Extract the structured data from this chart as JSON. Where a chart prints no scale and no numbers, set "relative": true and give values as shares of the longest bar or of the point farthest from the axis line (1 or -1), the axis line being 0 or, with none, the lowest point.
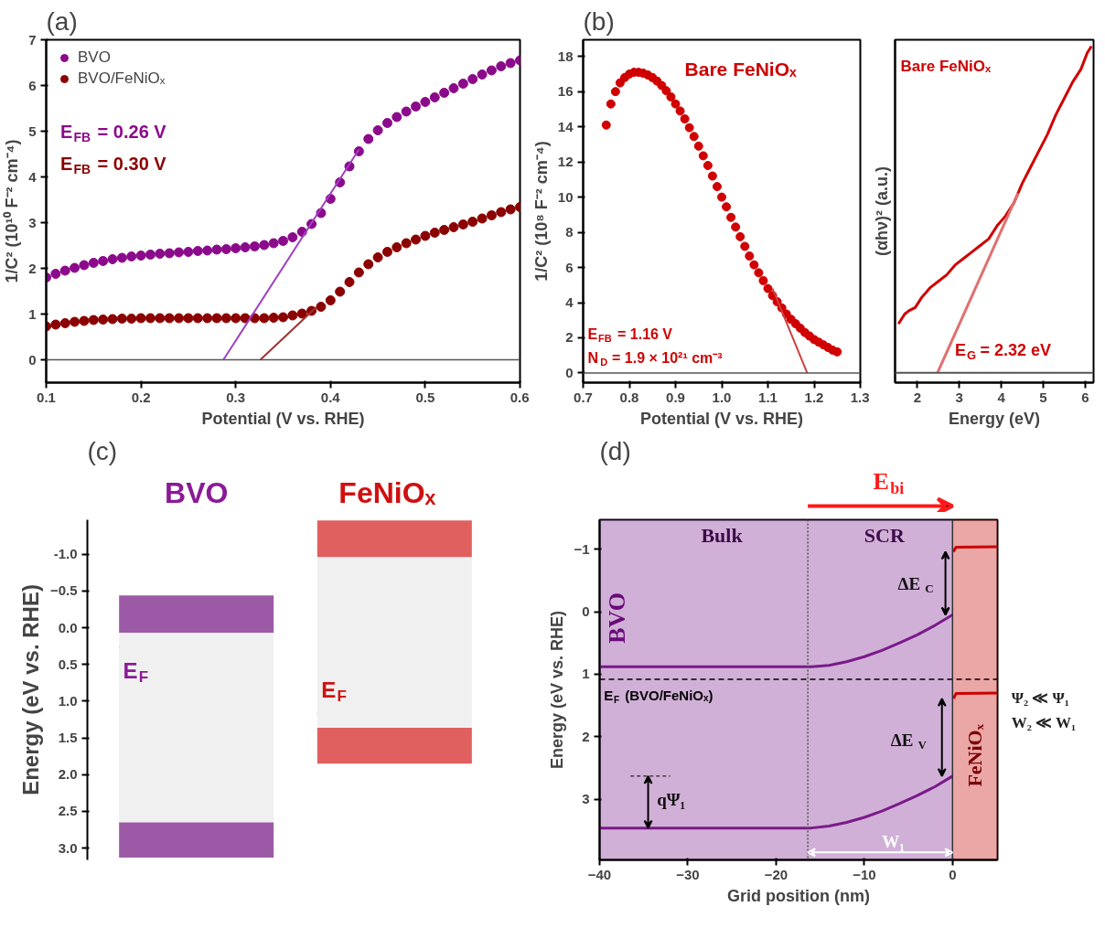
{
  "chart_data": [
    {
      "type": "scatter",
      "title": "(a)",
      "xlabel": "Potential (V vs. RHE)",
      "ylabel": "1/C² (10¹⁰ F⁻² cm⁻⁴)",
      "xlim": [
        0.1,
        0.6
      ],
      "ylim": [
        -0.5,
        7
      ],
      "xticks": [
        0.1,
        0.2,
        0.3,
        0.4,
        0.5,
        0.6
      ],
      "yticks": [
        0,
        1,
        2,
        3,
        4,
        5,
        6,
        7
      ],
      "legend": "top left",
      "grid": false,
      "x": [
        0.1,
        0.11,
        0.12,
        0.13,
        0.14,
        0.15,
        0.16,
        0.17,
        0.18,
        0.19,
        0.2,
        0.21,
        0.22,
        0.23,
        0.24,
        0.25,
        0.26,
        0.27,
        0.28,
        0.29,
        0.3,
        0.31,
        0.32,
        0.33,
        0.34,
        0.35,
        0.36,
        0.37,
        0.38,
        0.39,
        0.4,
        0.41,
        0.42,
        0.43,
        0.44,
        0.45,
        0.46,
        0.47,
        0.48,
        0.49,
        0.5,
        0.51,
        0.52,
        0.53,
        0.54,
        0.55,
        0.56,
        0.57,
        0.58,
        0.59,
        0.6
      ],
      "series": [
        {
          "name": "BVO",
          "color": "#8b0a8b",
          "marker": "circle",
          "values": [
            1.8,
            1.88,
            1.95,
            2.01,
            2.07,
            2.12,
            2.16,
            2.2,
            2.23,
            2.26,
            2.28,
            2.3,
            2.32,
            2.33,
            2.35,
            2.36,
            2.38,
            2.39,
            2.41,
            2.42,
            2.44,
            2.46,
            2.48,
            2.51,
            2.55,
            2.6,
            2.68,
            2.8,
            2.97,
            3.21,
            3.52,
            3.88,
            4.23,
            4.56,
            4.83,
            5.02,
            5.18,
            5.31,
            5.43,
            5.54,
            5.64,
            5.74,
            5.84,
            5.94,
            6.04,
            6.14,
            6.24,
            6.33,
            6.42,
            6.49,
            6.55
          ]
        },
        {
          "name": "BVO/FeNiOₓ",
          "color": "#8b0000",
          "marker": "circle",
          "values": [
            0.73,
            0.77,
            0.8,
            0.83,
            0.85,
            0.87,
            0.88,
            0.89,
            0.9,
            0.9,
            0.91,
            0.91,
            0.91,
            0.91,
            0.91,
            0.91,
            0.91,
            0.91,
            0.91,
            0.91,
            0.91,
            0.91,
            0.91,
            0.91,
            0.92,
            0.93,
            0.97,
            1.01,
            1.07,
            1.16,
            1.3,
            1.49,
            1.7,
            1.91,
            2.09,
            2.24,
            2.36,
            2.46,
            2.55,
            2.63,
            2.71,
            2.78,
            2.84,
            2.9,
            2.96,
            3.02,
            3.09,
            3.16,
            3.23,
            3.29,
            3.34
          ]
        },
        {
          "type": "line",
          "color": "#a040c0",
          "x": [
            0.287,
            0.43
          ],
          "values": [
            0,
            4.6
          ]
        },
        {
          "type": "line",
          "color": "#a03030",
          "x": [
            0.326,
            0.385
          ],
          "values": [
            0,
            1.15
          ]
        }
      ],
      "ref_lines": [
        {
          "axis": "y",
          "value": 0,
          "color": "#555555"
        }
      ],
      "annotations": [
        "E$_{FB}$ = 0.26 V",
        "E$_{FB}$ = 0.30 V"
      ]
    },
    {
      "type": "scatter",
      "title": "(b)",
      "xlabel": "Potential (V vs. RHE)",
      "ylabel": "1/C² (10⁸ F⁻² cm⁻⁴)",
      "xlim": [
        0.7,
        1.3
      ],
      "ylim": [
        -0.55,
        18.95
      ],
      "xticks": [
        0.7,
        0.8,
        0.9,
        {
          "value": 1.0,
          "label": "1.0"
        },
        1.1,
        1.2,
        1.3
      ],
      "yticks": [
        0,
        2,
        4,
        6,
        8,
        10,
        12,
        14,
        16,
        18
      ],
      "grid": false,
      "x": [
        0.75,
        0.76,
        0.77,
        0.78,
        0.79,
        0.8,
        0.81,
        0.82,
        0.83,
        0.84,
        0.85,
        0.86,
        0.87,
        0.88,
        0.89,
        0.9,
        0.91,
        0.92,
        0.93,
        0.94,
        0.95,
        0.96,
        0.97,
        0.98,
        0.99,
        1.0,
        1.01,
        1.02,
        1.03,
        1.04,
        1.05,
        1.06,
        1.07,
        1.08,
        1.09,
        1.1,
        1.11,
        1.12,
        1.13,
        1.14,
        1.15,
        1.16,
        1.17,
        1.18,
        1.19,
        1.2,
        1.21,
        1.22,
        1.23,
        1.24,
        1.25
      ],
      "series": [
        {
          "color": "#d00000",
          "marker": "circle",
          "values": [
            14.1,
            15.3,
            16.0,
            16.5,
            16.8,
            17.0,
            17.1,
            17.1,
            17.05,
            16.95,
            16.8,
            16.6,
            16.35,
            16.05,
            15.7,
            15.3,
            14.9,
            14.45,
            13.95,
            13.45,
            12.9,
            12.35,
            11.8,
            11.2,
            10.6,
            10.0,
            9.45,
            8.85,
            8.3,
            7.75,
            7.2,
            6.65,
            6.15,
            5.7,
            5.25,
            4.8,
            4.4,
            4.05,
            3.7,
            3.35,
            3.05,
            2.8,
            2.55,
            2.3,
            2.1,
            1.9,
            1.75,
            1.6,
            1.45,
            1.3,
            1.2
          ]
        },
        {
          "type": "line",
          "color": "#d04040",
          "x": [
            1.11,
            1.185
          ],
          "values": [
            4.8,
            0
          ]
        }
      ],
      "ref_lines": [
        {
          "axis": "y",
          "value": 0,
          "color": "#555555"
        }
      ],
      "annotations": [
        "Bare FeNiOₓ",
        "E$_{FB}$ = 1.16 V",
        "N$_{D}$ = 1.9 × 10²¹ cm⁻³"
      ]
    },
    {
      "type": "line",
      "relative": true,
      "xlabel": "Energy (eV)",
      "ylabel": "(αhν)² (a.u.)",
      "xlim": [
        1.47,
        6.2
      ],
      "xticks": [
        2,
        3,
        4,
        5,
        6
      ],
      "grid": false,
      "series": [
        {
          "color": "#d00000",
          "x": [
            1.55,
            1.7,
            1.8,
            1.95,
            2.1,
            2.3,
            2.5,
            2.7,
            2.9,
            3.1,
            3.3,
            3.5,
            3.7,
            3.9,
            4.1,
            4.3,
            4.5,
            4.7,
            4.9,
            5.1,
            5.3,
            5.5,
            5.7,
            5.9,
            6.05,
            6.15
          ],
          "values": [
            0.15,
            0.18,
            0.19,
            0.2,
            0.23,
            0.26,
            0.28,
            0.3,
            0.33,
            0.35,
            0.37,
            0.39,
            0.41,
            0.45,
            0.48,
            0.52,
            0.58,
            0.63,
            0.68,
            0.73,
            0.79,
            0.84,
            0.89,
            0.93,
            0.98,
            1
          ]
        },
        {
          "color": "#e07070",
          "x": [
            2.48,
            4.4
          ],
          "values": [
            0,
            0.55
          ]
        }
      ],
      "annotations": [
        "Bare FeNiOₓ",
        "E$_{G}$ = 2.32 eV"
      ]
    },
    {
      "type": "bar",
      "title": "(c)",
      "ylabel": "Energy (eV vs. RHE)",
      "categories": [
        "BVO",
        "FeNiOₓ"
      ],
      "ylim": [
        3.16,
        -1.47
      ],
      "yticks": [
        {
          "value": -1.0,
          "label": "-1.0"
        },
        -0.5,
        {
          "value": 0.0,
          "label": "0.0"
        },
        0.5,
        {
          "value": 1.0,
          "label": "1.0"
        },
        1.5,
        {
          "value": 2.0,
          "label": "2.0"
        },
        2.5,
        {
          "value": 3.0,
          "label": "3.0"
        }
      ],
      "tick_labels": "y",
      "grid": false,
      "series": [
        {
          "base": [
            -0.44,
            -1.46
          ],
          "colors": [
            "#9c5aa6",
            "#e06060"
          ],
          "values": [
            0.51,
            0.5
          ]
        },
        {
          "base": [
            0.07,
            -0.96
          ],
          "colors": [
            "#f0f0f0",
            "#f0f0f0"
          ],
          "values": [
            2.58,
            2.32
          ]
        },
        {
          "base": [
            2.65,
            1.36
          ],
          "colors": [
            "#9c5aa6",
            "#e06060"
          ],
          "values": [
            0.48,
            0.49
          ]
        }
      ],
      "ref_lines": [
        {
          "axis": "y",
          "value": 0.26,
          "label": "E$_{F}$",
          "color": "#8b1a95",
          "line_style": "dashed"
        },
        {
          "axis": "y",
          "value": 1.17,
          "label": "E$_{F}$",
          "color": "#d01010",
          "line_style": "dashed"
        }
      ]
    },
    {
      "type": "line",
      "title": "(d)",
      "xlabel": "Grid position (nm)",
      "ylabel": "Energy (eV vs. RHE)",
      "xlim": [
        -40,
        5.1
      ],
      "ylim": [
        3.97,
        -1.47
      ],
      "xticks": [
        -40,
        -30,
        -20,
        -10,
        0
      ],
      "yticks": [
        -1,
        0,
        1,
        2,
        3
      ],
      "grid": false,
      "series": [
        {
          "color": "#7a1a8a",
          "x": [
            -40,
            -16,
            -14,
            -12,
            -10,
            -8,
            -6,
            -4,
            -2,
            0
          ],
          "values": [
            0.88,
            0.88,
            0.86,
            0.8,
            0.72,
            0.62,
            0.5,
            0.37,
            0.22,
            0.05
          ]
        },
        {
          "color": "#7a1a8a",
          "x": [
            -40,
            -16,
            -14,
            -12,
            -10,
            -8,
            -6,
            -4,
            -2,
            0
          ],
          "values": [
            3.46,
            3.46,
            3.43,
            3.37,
            3.29,
            3.19,
            3.07,
            2.94,
            2.8,
            2.63
          ]
        },
        {
          "color": "#cc0000",
          "x": [
            0.1,
            0.4,
            5.1
          ],
          "values": [
            -0.96,
            -1.03,
            -1.04
          ]
        },
        {
          "color": "#cc0000",
          "x": [
            0.1,
            0.4,
            5.1
          ],
          "values": [
            1.39,
            1.31,
            1.3
          ]
        }
      ],
      "bands": [
        {
          "axis": "x",
          "from": -40,
          "to": 0,
          "label": "BVO",
          "color": "#8b3a9b"
        },
        {
          "axis": "x",
          "from": 0,
          "to": 5.1,
          "label": "FeNiOₓ",
          "color": "#cc2020"
        }
      ],
      "ref_lines": [
        {
          "axis": "y",
          "value": 1.08,
          "label": "E$_{F}$ (BVO/FeNiOₓ)",
          "color": "#000000",
          "line_style": "dashed"
        },
        {
          "axis": "x",
          "value": -16.4,
          "color": "#555555",
          "line_style": "dotted"
        },
        {
          "axis": "x",
          "value": 0,
          "color": "#333333"
        }
      ],
      "annotations": [
        "Bulk",
        "SCR",
        "E$_{bi}$",
        "Ψ₂ ≪ Ψ₁",
        "W₂ ≪ W₁",
        "ΔE$_{C}$",
        "ΔE$_{V}$",
        "qΨ₁",
        "W₁"
      ]
    }
  ]
}
